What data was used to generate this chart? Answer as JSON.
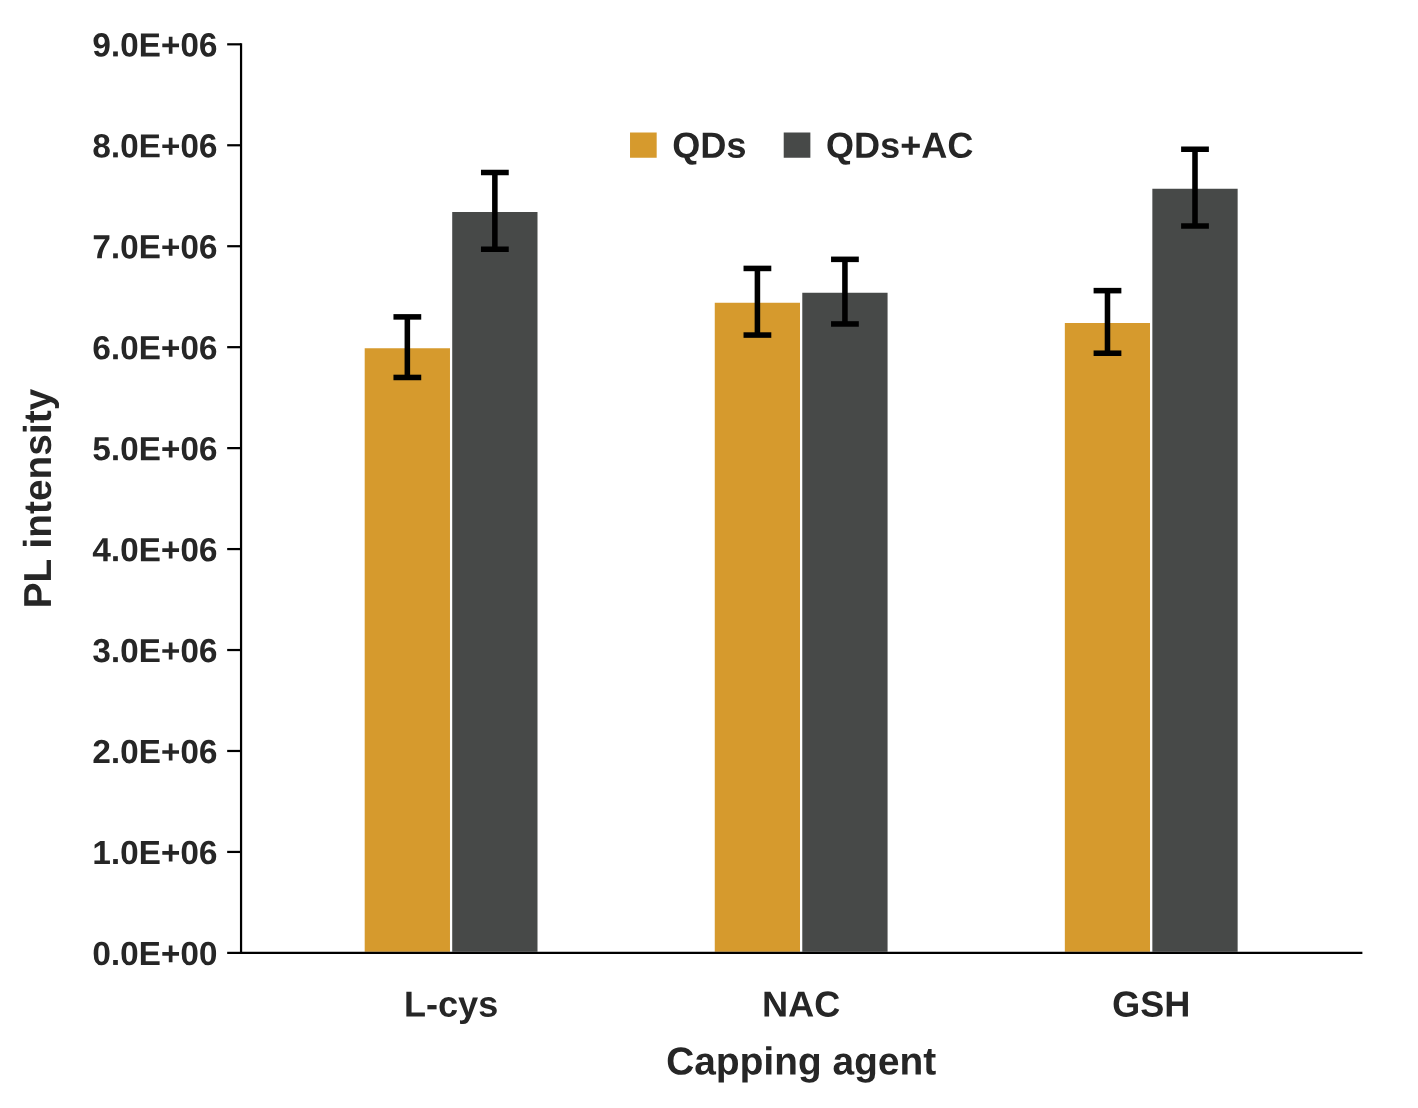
{
  "chart_data": {
    "type": "bar",
    "xlabel": "Capping agent",
    "ylabel": "PL intensity",
    "categories": [
      "L-cys",
      "NAC",
      "GSH"
    ],
    "series": [
      {
        "name": "QDs",
        "color": "#d69a2d",
        "values": [
          6000000,
          6450000,
          6250000
        ],
        "errors": [
          300000,
          330000,
          310000
        ]
      },
      {
        "name": "QDs+AC",
        "color": "#474948",
        "values": [
          7350000,
          6550000,
          7580000
        ],
        "errors": [
          380000,
          320000,
          380000
        ]
      }
    ],
    "ylim": [
      0,
      9000000
    ],
    "yticks": [
      {
        "value": 0,
        "label": "0.0E+00"
      },
      {
        "value": 1000000,
        "label": "1.0E+06"
      },
      {
        "value": 2000000,
        "label": "2.0E+06"
      },
      {
        "value": 3000000,
        "label": "3.0E+06"
      },
      {
        "value": 4000000,
        "label": "4.0E+06"
      },
      {
        "value": 5000000,
        "label": "5.0E+06"
      },
      {
        "value": 6000000,
        "label": "6.0E+06"
      },
      {
        "value": 7000000,
        "label": "7.0E+06"
      },
      {
        "value": 8000000,
        "label": "8.0E+06"
      },
      {
        "value": 9000000,
        "label": "9.0E+06"
      }
    ],
    "grid": false,
    "legend": "top"
  }
}
